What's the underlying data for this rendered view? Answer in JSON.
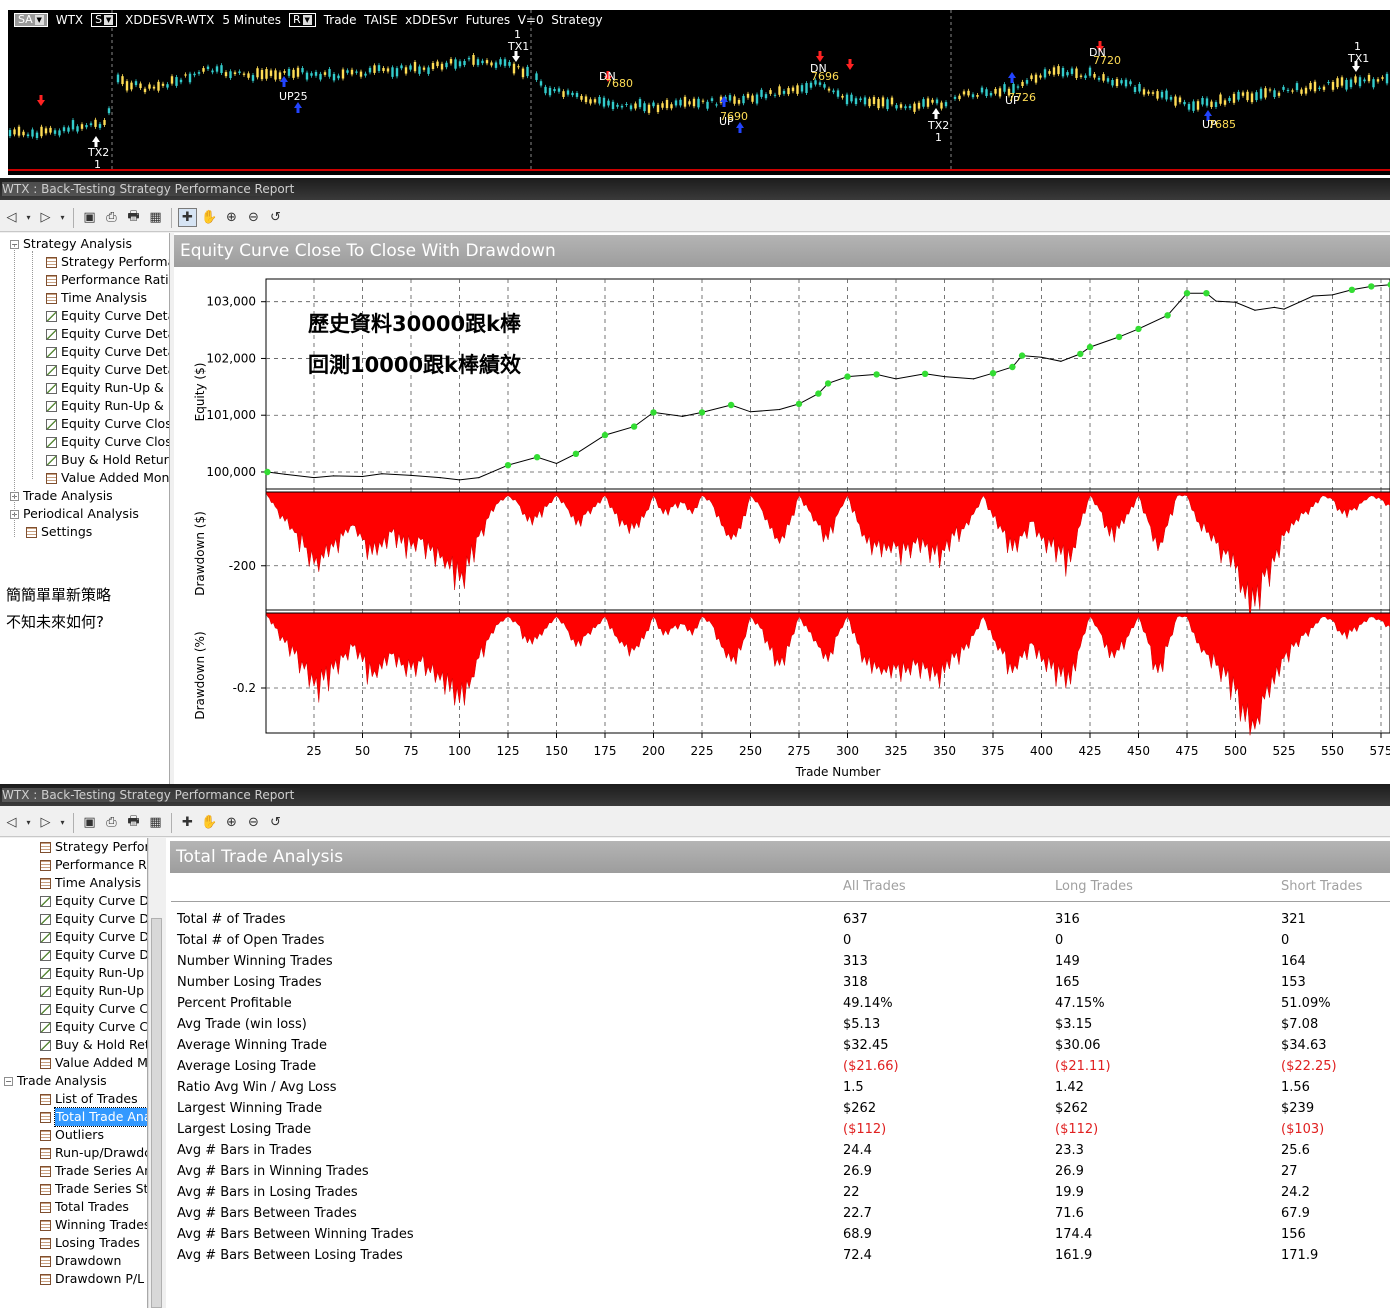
{
  "top_chart": {
    "sa_label": "SA",
    "symbol": "WTX",
    "s_label": "S",
    "series_name": "XDDESVR-WTX",
    "interval": "5 Minutes",
    "r_label": "R",
    "strategy_line": "Trade  TAISE  xDDESvr  Futures  V=0  Strategy",
    "markers": [
      "TX2",
      "1",
      "UP25",
      "TX1",
      "1",
      "DN",
      "7680",
      "UP",
      "7690",
      "DN",
      "7696",
      "TX2",
      "1",
      "UP",
      "7726",
      "DN",
      "7720",
      "UP",
      "7685",
      "TX1",
      "1"
    ]
  },
  "window1": {
    "title": "WTX :  Back-Testing Strategy Performance Report",
    "tree": [
      {
        "label": "Strategy Analysis",
        "type": "group",
        "expander": "−"
      },
      {
        "label": "Strategy Performar",
        "type": "table"
      },
      {
        "label": "Performance Ratios",
        "type": "table"
      },
      {
        "label": "Time Analysis",
        "type": "table"
      },
      {
        "label": "Equity Curve Detail",
        "type": "chart"
      },
      {
        "label": "Equity Curve Detail",
        "type": "chart"
      },
      {
        "label": "Equity Curve Detail",
        "type": "chart"
      },
      {
        "label": "Equity Curve Detail",
        "type": "chart"
      },
      {
        "label": "Equity Run-Up & D",
        "type": "chart"
      },
      {
        "label": "Equity Run-Up & D",
        "type": "chart"
      },
      {
        "label": "Equity Curve Close",
        "type": "chart"
      },
      {
        "label": "Equity Curve Close",
        "type": "chart"
      },
      {
        "label": "Buy & Hold Return",
        "type": "chart"
      },
      {
        "label": "Value Added Mont",
        "type": "table"
      },
      {
        "label": "Trade Analysis",
        "type": "group",
        "expander": "+"
      },
      {
        "label": "Periodical Analysis",
        "type": "group",
        "expander": "+"
      },
      {
        "label": "Settings",
        "type": "table"
      }
    ],
    "side_note_line1": "簡簡單單新策略",
    "side_note_line2": "不知未來如何?",
    "panel_title": "Equity Curve Close To Close With Drawdown",
    "annotation_line1": "歷史資料30000跟k棒",
    "annotation_line2": "回測10000跟k棒績效"
  },
  "chart_data": {
    "type": "area",
    "title": "Equity Curve Close To Close With Drawdown",
    "xlabel": "Trade Number",
    "x_ticks": [
      "25",
      "50",
      "75",
      "100",
      "125",
      "150",
      "175",
      "200",
      "225",
      "250",
      "275",
      "300",
      "325",
      "350",
      "375",
      "400",
      "425",
      "450",
      "475",
      "500",
      "525",
      "550",
      "575"
    ],
    "xlim": [
      1,
      580
    ],
    "panels": [
      {
        "name": "Equity",
        "ylabel": "Equity ($)",
        "y_ticks": [
          "103,000",
          "102,000",
          "101,000",
          "100,000"
        ],
        "ylim": [
          99700,
          103400
        ],
        "type": "line",
        "series": {
          "x": [
            1,
            10,
            25,
            35,
            50,
            60,
            75,
            90,
            100,
            110,
            125,
            140,
            150,
            160,
            175,
            190,
            200,
            215,
            225,
            240,
            250,
            265,
            275,
            285,
            290,
            300,
            315,
            325,
            340,
            350,
            365,
            375,
            385,
            390,
            400,
            410,
            420,
            425,
            440,
            450,
            465,
            475,
            485,
            490,
            500,
            510,
            520,
            525,
            540,
            550,
            560,
            570,
            580
          ],
          "y": [
            100000,
            99960,
            99900,
            99930,
            99920,
            99970,
            99940,
            99900,
            99860,
            99900,
            100120,
            100260,
            100150,
            100320,
            100650,
            100800,
            101050,
            100980,
            101050,
            101180,
            101060,
            101100,
            101200,
            101380,
            101560,
            101680,
            101720,
            101640,
            101730,
            101680,
            101640,
            101740,
            101850,
            102050,
            102020,
            101950,
            102080,
            102200,
            102380,
            102520,
            102760,
            103150,
            103150,
            103010,
            102990,
            102850,
            102900,
            102870,
            103100,
            103120,
            103210,
            103270,
            103300
          ]
        }
      },
      {
        "name": "Drawdown ($)",
        "ylabel": "Drawdown ($)",
        "y_ticks": [
          "-200"
        ],
        "ylim": [
          -320,
          0
        ],
        "type": "area",
        "color": "#ff0000",
        "series": {
          "x": [
            1,
            5,
            10,
            15,
            20,
            25,
            30,
            35,
            40,
            45,
            50,
            55,
            60,
            65,
            70,
            75,
            80,
            85,
            90,
            95,
            100,
            105,
            110,
            115,
            120,
            125,
            130,
            135,
            140,
            145,
            150,
            155,
            160,
            165,
            170,
            175,
            180,
            185,
            190,
            195,
            200,
            205,
            210,
            215,
            220,
            225,
            230,
            235,
            240,
            245,
            250,
            255,
            260,
            265,
            270,
            275,
            280,
            285,
            290,
            295,
            300,
            305,
            310,
            315,
            320,
            325,
            330,
            335,
            340,
            345,
            350,
            355,
            360,
            365,
            370,
            375,
            380,
            385,
            390,
            395,
            400,
            405,
            410,
            415,
            420,
            425,
            430,
            435,
            440,
            445,
            450,
            455,
            460,
            465,
            470,
            475,
            480,
            485,
            490,
            495,
            500,
            505,
            510,
            515,
            520,
            525,
            530,
            535,
            540,
            545,
            550,
            555,
            560,
            565,
            570,
            575,
            580
          ],
          "y": [
            -10,
            -40,
            -80,
            -110,
            -150,
            -195,
            -180,
            -150,
            -120,
            -90,
            -130,
            -170,
            -150,
            -110,
            -140,
            -150,
            -130,
            -160,
            -180,
            -210,
            -240,
            -200,
            -120,
            -70,
            -30,
            -10,
            -30,
            -80,
            -70,
            -40,
            -10,
            -40,
            -90,
            -60,
            -40,
            -10,
            -60,
            -90,
            -100,
            -70,
            -10,
            -60,
            -40,
            -30,
            -60,
            -10,
            -30,
            -90,
            -130,
            -100,
            -10,
            -40,
            -100,
            -140,
            -90,
            -10,
            -50,
            -90,
            -130,
            -60,
            -10,
            -80,
            -140,
            -150,
            -160,
            -150,
            -160,
            -140,
            -150,
            -170,
            -160,
            -120,
            -100,
            -60,
            -10,
            -70,
            -110,
            -160,
            -120,
            -80,
            -130,
            -150,
            -170,
            -190,
            -90,
            -10,
            -50,
            -120,
            -100,
            -60,
            -10,
            -80,
            -160,
            -90,
            -10,
            -10,
            -80,
            -110,
            -140,
            -170,
            -210,
            -290,
            -310,
            -230,
            -190,
            -120,
            -90,
            -60,
            -40,
            -10,
            -20,
            -60,
            -50,
            -30,
            -10,
            -20,
            -40
          ]
        }
      },
      {
        "name": "Drawdown (%)",
        "ylabel": "Drawdown (%)",
        "y_ticks": [
          "-0.2"
        ],
        "ylim": [
          -0.32,
          0
        ],
        "type": "area",
        "color": "#ff0000",
        "series": {
          "x": [
            1,
            5,
            10,
            15,
            20,
            25,
            30,
            35,
            40,
            45,
            50,
            55,
            60,
            65,
            70,
            75,
            80,
            85,
            90,
            95,
            100,
            105,
            110,
            115,
            120,
            125,
            130,
            135,
            140,
            145,
            150,
            155,
            160,
            165,
            170,
            175,
            180,
            185,
            190,
            195,
            200,
            205,
            210,
            215,
            220,
            225,
            230,
            235,
            240,
            245,
            250,
            255,
            260,
            265,
            270,
            275,
            280,
            285,
            290,
            295,
            300,
            305,
            310,
            315,
            320,
            325,
            330,
            335,
            340,
            345,
            350,
            355,
            360,
            365,
            370,
            375,
            380,
            385,
            390,
            395,
            400,
            405,
            410,
            415,
            420,
            425,
            430,
            435,
            440,
            445,
            450,
            455,
            460,
            465,
            470,
            475,
            480,
            485,
            490,
            495,
            500,
            505,
            510,
            515,
            520,
            525,
            530,
            535,
            540,
            545,
            550,
            555,
            560,
            565,
            570,
            575,
            580
          ],
          "y": [
            -0.01,
            -0.04,
            -0.08,
            -0.11,
            -0.15,
            -0.195,
            -0.18,
            -0.15,
            -0.12,
            -0.09,
            -0.13,
            -0.17,
            -0.15,
            -0.11,
            -0.14,
            -0.15,
            -0.13,
            -0.16,
            -0.18,
            -0.21,
            -0.24,
            -0.2,
            -0.12,
            -0.07,
            -0.03,
            -0.01,
            -0.03,
            -0.08,
            -0.07,
            -0.04,
            -0.01,
            -0.04,
            -0.09,
            -0.06,
            -0.04,
            -0.01,
            -0.06,
            -0.09,
            -0.1,
            -0.07,
            -0.01,
            -0.06,
            -0.04,
            -0.03,
            -0.06,
            -0.01,
            -0.03,
            -0.09,
            -0.13,
            -0.1,
            -0.01,
            -0.04,
            -0.1,
            -0.14,
            -0.09,
            -0.01,
            -0.05,
            -0.09,
            -0.13,
            -0.06,
            -0.01,
            -0.08,
            -0.14,
            -0.15,
            -0.16,
            -0.15,
            -0.16,
            -0.14,
            -0.15,
            -0.17,
            -0.16,
            -0.12,
            -0.1,
            -0.06,
            -0.01,
            -0.07,
            -0.11,
            -0.16,
            -0.12,
            -0.08,
            -0.13,
            -0.15,
            -0.17,
            -0.19,
            -0.09,
            -0.01,
            -0.05,
            -0.12,
            -0.1,
            -0.06,
            -0.01,
            -0.08,
            -0.16,
            -0.09,
            -0.01,
            -0.01,
            -0.08,
            -0.11,
            -0.14,
            -0.17,
            -0.21,
            -0.29,
            -0.31,
            -0.23,
            -0.19,
            -0.12,
            -0.09,
            -0.06,
            -0.04,
            -0.01,
            -0.02,
            -0.06,
            -0.05,
            -0.03,
            -0.01,
            -0.02,
            -0.04
          ]
        }
      }
    ]
  },
  "window2": {
    "title": "WTX :  Back-Testing Strategy Performance Report",
    "tree": [
      {
        "label": "Strategy Perform",
        "type": "table"
      },
      {
        "label": "Performance Ra",
        "type": "table"
      },
      {
        "label": "Time Analysis",
        "type": "table"
      },
      {
        "label": "Equity Curve De",
        "type": "chart"
      },
      {
        "label": "Equity Curve De",
        "type": "chart"
      },
      {
        "label": "Equity Curve De",
        "type": "chart"
      },
      {
        "label": "Equity Curve De",
        "type": "chart"
      },
      {
        "label": "Equity Run-Up &",
        "type": "chart"
      },
      {
        "label": "Equity Run-Up &",
        "type": "chart"
      },
      {
        "label": "Equity Curve Clc",
        "type": "chart"
      },
      {
        "label": "Equity Curve Clc",
        "type": "chart"
      },
      {
        "label": "Buy & Hold Retu",
        "type": "chart"
      },
      {
        "label": "Value Added M",
        "type": "table"
      },
      {
        "label": "Trade Analysis",
        "type": "group",
        "expander": "−"
      },
      {
        "label": "List of Trades",
        "type": "table"
      },
      {
        "label": "Total Trade Ana",
        "type": "table",
        "selected": true
      },
      {
        "label": "Outliers",
        "type": "table"
      },
      {
        "label": "Run-up/Drawdc",
        "type": "table"
      },
      {
        "label": "Trade Series Ana",
        "type": "table"
      },
      {
        "label": "Trade Series Sta",
        "type": "table"
      },
      {
        "label": "Total Trades",
        "type": "table"
      },
      {
        "label": "Winning Trades",
        "type": "table"
      },
      {
        "label": "Losing Trades",
        "type": "table"
      },
      {
        "label": "Drawdown",
        "type": "table"
      },
      {
        "label": "Drawdown P/L",
        "type": "table"
      }
    ],
    "panel_title": "Total Trade Analysis",
    "columns": [
      "",
      "All Trades",
      "Long Trades",
      "Short Trades"
    ],
    "rows": [
      {
        "label": "Total # of Trades",
        "all": "637",
        "long": "316",
        "short": "321"
      },
      {
        "label": "Total # of Open Trades",
        "all": "0",
        "long": "0",
        "short": "0"
      },
      {
        "label": "Number Winning Trades",
        "all": "313",
        "long": "149",
        "short": "164"
      },
      {
        "label": "Number Losing Trades",
        "all": "318",
        "long": "165",
        "short": "153"
      },
      {
        "label": "Percent Profitable",
        "all": "49.14%",
        "long": "47.15%",
        "short": "51.09%"
      },
      {
        "label": "Avg Trade (win  loss)",
        "all": "$5.13",
        "long": "$3.15",
        "short": "$7.08"
      },
      {
        "label": "Average Winning Trade",
        "all": "$32.45",
        "long": "$30.06",
        "short": "$34.63"
      },
      {
        "label": "Average Losing Trade",
        "all": "($21.66)",
        "long": "($21.11)",
        "short": "($22.25)",
        "negative": true
      },
      {
        "label": "Ratio Avg Win / Avg Loss",
        "all": "1.5",
        "long": "1.42",
        "short": "1.56"
      },
      {
        "label": "Largest Winning Trade",
        "all": "$262",
        "long": "$262",
        "short": "$239"
      },
      {
        "label": "Largest Losing Trade",
        "all": "($112)",
        "long": "($112)",
        "short": "($103)",
        "negative": true
      },
      {
        "label": "Avg # Bars in Trades",
        "all": "24.4",
        "long": "23.3",
        "short": "25.6"
      },
      {
        "label": "Avg # Bars in Winning Trades",
        "all": "26.9",
        "long": "26.9",
        "short": "27"
      },
      {
        "label": "Avg # Bars in Losing Trades",
        "all": "22",
        "long": "19.9",
        "short": "24.2"
      },
      {
        "label": "Avg # Bars Between Trades",
        "all": "22.7",
        "long": "71.6",
        "short": "67.9"
      },
      {
        "label": "Avg # Bars Between Winning Trades",
        "all": "68.9",
        "long": "174.4",
        "short": "156"
      },
      {
        "label": "Avg # Bars Between Losing Trades",
        "all": "72.4",
        "long": "161.9",
        "short": "171.9"
      }
    ]
  }
}
